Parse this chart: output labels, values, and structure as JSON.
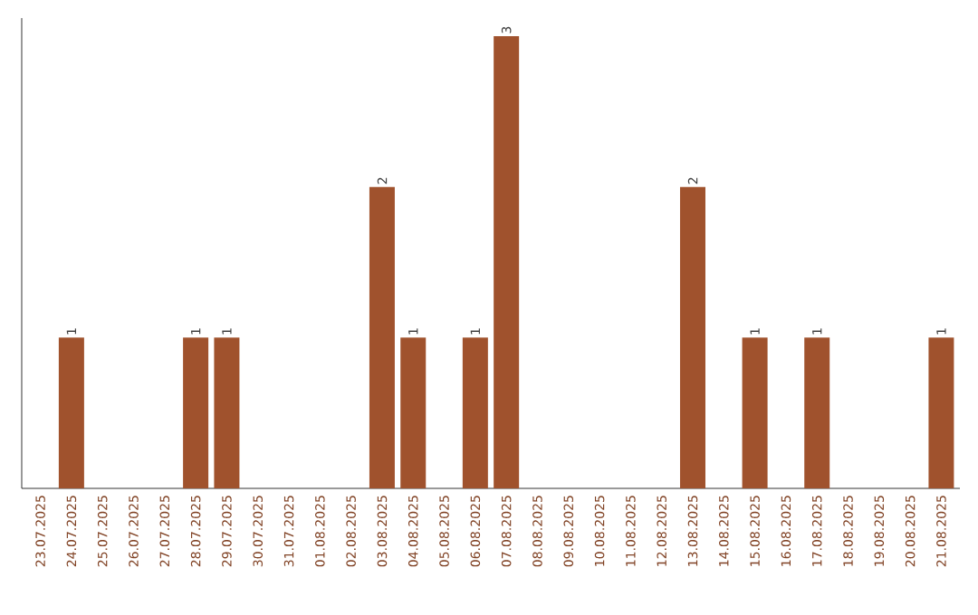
{
  "chart_data": {
    "type": "bar",
    "categories": [
      "23.07.2025",
      "24.07.2025",
      "25.07.2025",
      "26.07.2025",
      "27.07.2025",
      "28.07.2025",
      "29.07.2025",
      "30.07.2025",
      "31.07.2025",
      "01.08.2025",
      "02.08.2025",
      "03.08.2025",
      "04.08.2025",
      "05.08.2025",
      "06.08.2025",
      "07.08.2025",
      "08.08.2025",
      "09.08.2025",
      "10.08.2025",
      "11.08.2025",
      "12.08.2025",
      "13.08.2025",
      "14.08.2025",
      "15.08.2025",
      "16.08.2025",
      "17.08.2025",
      "18.08.2025",
      "19.08.2025",
      "20.08.2025",
      "21.08.2025"
    ],
    "values": [
      0,
      1,
      0,
      0,
      0,
      1,
      1,
      0,
      0,
      0,
      0,
      2,
      1,
      0,
      1,
      3,
      0,
      0,
      0,
      0,
      0,
      2,
      0,
      1,
      0,
      1,
      0,
      0,
      0,
      1
    ],
    "value_labels": [
      null,
      "1",
      null,
      null,
      null,
      "1",
      "1",
      null,
      null,
      null,
      null,
      "2",
      "1",
      null,
      "1",
      "3",
      null,
      null,
      null,
      null,
      null,
      "2",
      null,
      "1",
      null,
      "1",
      null,
      null,
      null,
      "1"
    ],
    "color": "#a0522d"
  }
}
